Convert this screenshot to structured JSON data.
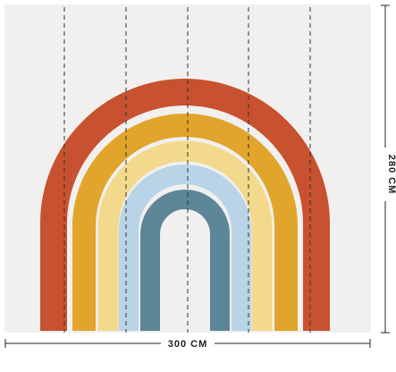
{
  "dimensions": {
    "width": "300 CM",
    "height": "280 CM"
  }
}
